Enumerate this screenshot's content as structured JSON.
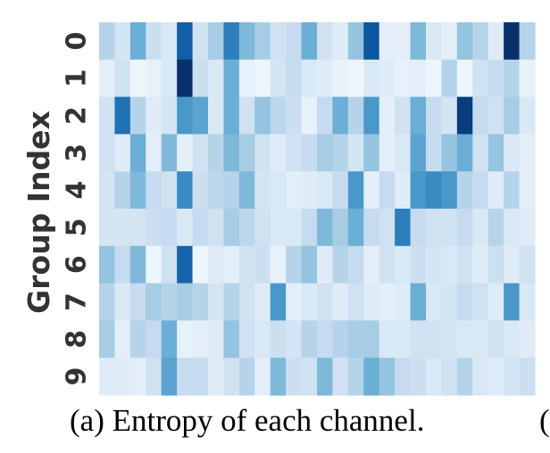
{
  "chart_data": {
    "type": "heatmap",
    "ylabel": "Group Index",
    "xlabel": "",
    "y_categories": [
      "0",
      "1",
      "2",
      "3",
      "4",
      "5",
      "6",
      "7",
      "8",
      "9"
    ],
    "colormap": [
      "#f7fbff",
      "#deebf7",
      "#c6dbef",
      "#9ecae1",
      "#6baed6",
      "#4292c6",
      "#2171b5",
      "#08519c",
      "#08306b"
    ],
    "values": [
      [
        0.3,
        0.18,
        0.5,
        0.22,
        0.15,
        0.82,
        0.2,
        0.35,
        0.7,
        0.45,
        0.35,
        0.2,
        0.25,
        0.5,
        0.2,
        0.12,
        0.4,
        0.85,
        0.1,
        0.1,
        0.45,
        0.15,
        0.1,
        0.4,
        0.3,
        0.12,
        1.0,
        0.3
      ],
      [
        0.1,
        0.2,
        0.05,
        0.08,
        0.15,
        1.0,
        0.22,
        0.15,
        0.5,
        0.08,
        0.05,
        0.18,
        0.25,
        0.15,
        0.12,
        0.08,
        0.05,
        0.15,
        0.12,
        0.08,
        0.1,
        0.05,
        0.3,
        0.05,
        0.2,
        0.25,
        0.3,
        0.08
      ],
      [
        0.2,
        0.75,
        0.3,
        0.12,
        0.18,
        0.6,
        0.55,
        0.15,
        0.5,
        0.2,
        0.4,
        0.28,
        0.22,
        0.08,
        0.25,
        0.5,
        0.3,
        0.6,
        0.1,
        0.2,
        0.5,
        0.25,
        0.18,
        0.95,
        0.25,
        0.2,
        0.35,
        0.15
      ],
      [
        0.2,
        0.12,
        0.5,
        0.1,
        0.45,
        0.1,
        0.2,
        0.3,
        0.45,
        0.35,
        0.2,
        0.12,
        0.2,
        0.25,
        0.35,
        0.3,
        0.18,
        0.4,
        0.1,
        0.15,
        0.55,
        0.25,
        0.4,
        0.5,
        0.2,
        0.4,
        0.15,
        0.1
      ],
      [
        0.18,
        0.3,
        0.45,
        0.25,
        0.2,
        0.65,
        0.22,
        0.28,
        0.3,
        0.45,
        0.18,
        0.15,
        0.1,
        0.12,
        0.15,
        0.25,
        0.6,
        0.1,
        0.25,
        0.12,
        0.6,
        0.65,
        0.6,
        0.3,
        0.25,
        0.12,
        0.3,
        0.1
      ],
      [
        0.18,
        0.18,
        0.18,
        0.22,
        0.25,
        0.15,
        0.25,
        0.2,
        0.35,
        0.28,
        0.2,
        0.15,
        0.15,
        0.25,
        0.45,
        0.35,
        0.5,
        0.25,
        0.2,
        0.7,
        0.25,
        0.2,
        0.2,
        0.25,
        0.15,
        0.3,
        0.15,
        0.12
      ],
      [
        0.4,
        0.25,
        0.45,
        0.05,
        0.2,
        0.8,
        0.05,
        0.12,
        0.1,
        0.2,
        0.22,
        0.08,
        0.3,
        0.4,
        0.12,
        0.3,
        0.25,
        0.1,
        0.2,
        0.15,
        0.22,
        0.18,
        0.15,
        0.2,
        0.12,
        0.22,
        0.12,
        0.2
      ],
      [
        0.3,
        0.15,
        0.25,
        0.35,
        0.3,
        0.35,
        0.3,
        0.18,
        0.3,
        0.2,
        0.12,
        0.6,
        0.1,
        0.15,
        0.2,
        0.12,
        0.2,
        0.12,
        0.1,
        0.12,
        0.5,
        0.15,
        0.18,
        0.25,
        0.2,
        0.12,
        0.6,
        0.15
      ],
      [
        0.35,
        0.1,
        0.3,
        0.25,
        0.5,
        0.08,
        0.1,
        0.12,
        0.4,
        0.2,
        0.15,
        0.22,
        0.18,
        0.3,
        0.25,
        0.3,
        0.35,
        0.35,
        0.15,
        0.15,
        0.2,
        0.2,
        0.18,
        0.15,
        0.15,
        0.2,
        0.15,
        0.12
      ],
      [
        0.12,
        0.12,
        0.1,
        0.2,
        0.55,
        0.25,
        0.25,
        0.12,
        0.2,
        0.3,
        0.1,
        0.45,
        0.22,
        0.2,
        0.45,
        0.2,
        0.3,
        0.5,
        0.4,
        0.25,
        0.22,
        0.15,
        0.2,
        0.3,
        0.15,
        0.12,
        0.18,
        0.22
      ]
    ]
  },
  "caption": {
    "text": "(a) Entropy of each channel.",
    "next_caption_fragment": "("
  }
}
